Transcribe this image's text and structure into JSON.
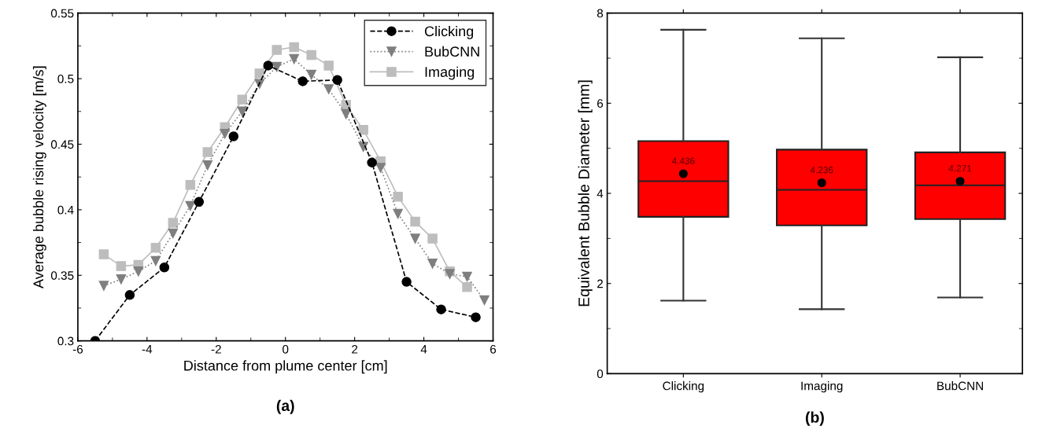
{
  "chart_data": [
    {
      "type": "line",
      "xlabel": "Distance from plume center [cm]",
      "ylabel": "Average bubble rising velocity [m/s]",
      "xlim": [
        -6,
        6
      ],
      "xticks": [
        -6,
        -4,
        -2,
        0,
        2,
        4,
        6
      ],
      "ylim": [
        0.3,
        0.55
      ],
      "yticks": [
        0.3,
        0.35,
        0.4,
        0.45,
        0.5,
        0.55
      ],
      "legend": "top right",
      "grid": false,
      "annotations": [
        "(a)"
      ],
      "series": [
        {
          "name": "Clicking",
          "color": "#000000",
          "marker": "circle",
          "line_style": "dashed",
          "x": [
            -5.5,
            -4.5,
            -3.5,
            -2.5,
            -1.5,
            -0.5,
            0.5,
            1.5,
            2.5,
            3.5,
            4.5,
            5.5
          ],
          "values": [
            0.3,
            0.335,
            0.356,
            0.406,
            0.456,
            0.51,
            0.498,
            0.499,
            0.436,
            0.345,
            0.324,
            0.318
          ]
        },
        {
          "name": "BubCNN",
          "color": "#7f7f7f",
          "marker": "triangle",
          "line_style": "dotted",
          "x": [
            -5.25,
            -4.75,
            -4.25,
            -3.75,
            -3.25,
            -2.75,
            -2.25,
            -1.75,
            -1.25,
            -0.75,
            -0.25,
            0.25,
            0.75,
            1.25,
            1.75,
            2.25,
            2.75,
            3.25,
            3.75,
            4.25,
            4.75,
            5.25,
            5.75
          ],
          "values": [
            0.342,
            0.347,
            0.353,
            0.361,
            0.382,
            0.403,
            0.434,
            0.458,
            0.475,
            0.496,
            0.509,
            0.515,
            0.503,
            0.492,
            0.473,
            0.448,
            0.432,
            0.397,
            0.378,
            0.359,
            0.351,
            0.349,
            0.331
          ]
        },
        {
          "name": "Imaging",
          "color": "#bdbdbd",
          "marker": "square",
          "line_style": "solid",
          "x": [
            -5.25,
            -4.75,
            -4.25,
            -3.75,
            -3.25,
            -2.75,
            -2.25,
            -1.75,
            -1.25,
            -0.75,
            -0.25,
            0.25,
            0.75,
            1.25,
            1.75,
            2.25,
            2.75,
            3.25,
            3.75,
            4.25,
            4.75,
            5.25
          ],
          "values": [
            0.366,
            0.357,
            0.358,
            0.371,
            0.39,
            0.419,
            0.444,
            0.463,
            0.484,
            0.504,
            0.522,
            0.524,
            0.518,
            0.51,
            0.48,
            0.461,
            0.437,
            0.41,
            0.391,
            0.378,
            0.353,
            0.341
          ]
        }
      ]
    },
    {
      "type": "box",
      "ylabel": "Equivalent Bubble Diameter [mm]",
      "categories": [
        "Clicking",
        "Imaging",
        "BubCNN"
      ],
      "ylim": [
        0,
        8
      ],
      "yticks": [
        0,
        2,
        4,
        6,
        8
      ],
      "grid": false,
      "color": "#ff0000",
      "boxes": [
        {
          "low": 1.62,
          "q1": 3.48,
          "median": 4.27,
          "q3": 5.16,
          "high": 7.63,
          "mean": 4.436
        },
        {
          "low": 1.43,
          "q1": 3.29,
          "median": 4.08,
          "q3": 4.97,
          "high": 7.44,
          "mean": 4.236
        },
        {
          "low": 1.69,
          "q1": 3.43,
          "median": 4.18,
          "q3": 4.91,
          "high": 7.02,
          "mean": 4.271
        }
      ],
      "annotations": [
        "4.436",
        "4.236",
        "4.271",
        "(b)"
      ]
    }
  ]
}
